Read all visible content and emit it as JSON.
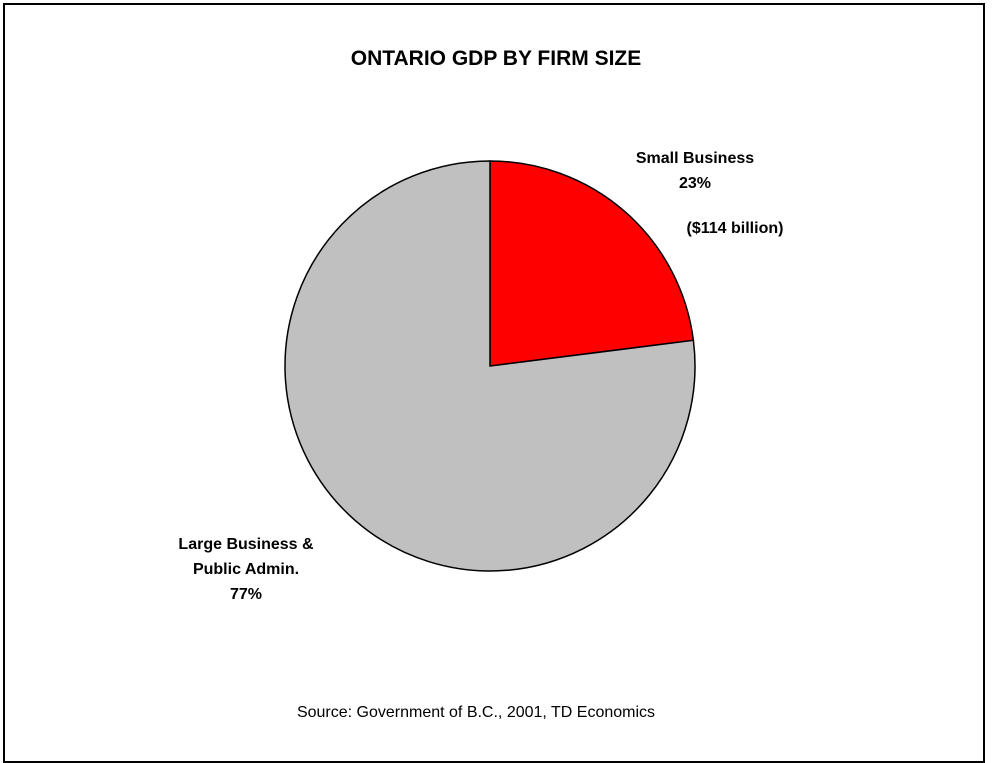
{
  "chart_data": {
    "type": "pie",
    "title": "ONTARIO GDP BY FIRM SIZE",
    "slices": [
      {
        "name_lines": [
          "Small Business"
        ],
        "percent_label": "23%",
        "value": 23,
        "extra": "($114 billion)",
        "color": "#ff0000"
      },
      {
        "name_lines": [
          "Large Business &",
          "Public Admin."
        ],
        "percent_label": "77%",
        "value": 77,
        "color": "#c0c0c0"
      }
    ],
    "source": "Source: Government of B.C., 2001, TD Economics"
  }
}
